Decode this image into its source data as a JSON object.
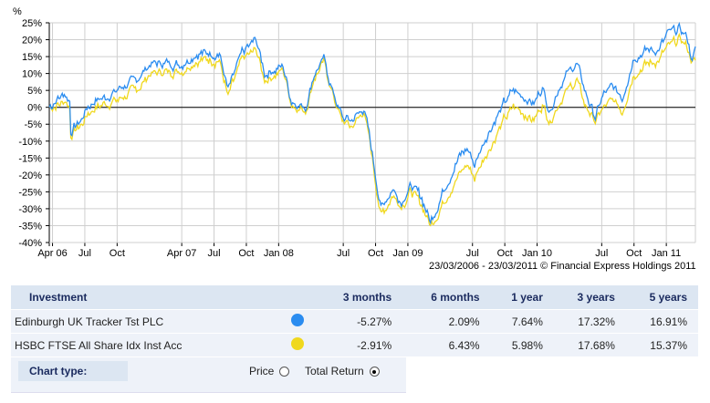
{
  "chart_data": {
    "type": "line",
    "ylabel": "%",
    "ylim": [
      -40,
      25
    ],
    "ystep": 5,
    "ytick_suffix": "%",
    "xlim_months": [
      0,
      60
    ],
    "grid": true,
    "xticks": [
      {
        "label": "Apr 06",
        "m": 0.3
      },
      {
        "label": "Jul",
        "m": 3.3
      },
      {
        "label": "Oct",
        "m": 6.3
      },
      {
        "label": "Apr 07",
        "m": 12.3
      },
      {
        "label": "Jul",
        "m": 15.3
      },
      {
        "label": "Oct",
        "m": 18.3
      },
      {
        "label": "Jan 08",
        "m": 21.3
      },
      {
        "label": "Jul",
        "m": 27.3
      },
      {
        "label": "Oct",
        "m": 30.3
      },
      {
        "label": "Jan 09",
        "m": 33.3
      },
      {
        "label": "Jul",
        "m": 39.3
      },
      {
        "label": "Oct",
        "m": 42.3
      },
      {
        "label": "Jan 10",
        "m": 45.3
      },
      {
        "label": "Jul",
        "m": 51.3
      },
      {
        "label": "Oct",
        "m": 54.3
      },
      {
        "label": "Jan 11",
        "m": 57.3
      }
    ],
    "x_months": [
      0,
      0.9,
      1.5,
      1.9,
      2.0,
      2.6,
      3.1,
      3.5,
      4.3,
      5.2,
      6.3,
      7.3,
      8.1,
      9.4,
      12.4,
      13.6,
      15.8,
      16.6,
      17.9,
      19.2,
      20.0,
      21.7,
      22.5,
      23.8,
      24.6,
      25.5,
      26.3,
      27.2,
      28.1,
      29.2,
      29.7,
      30.3,
      30.8,
      31.9,
      32.7,
      33.6,
      34.6,
      35.4,
      36.3,
      37.1,
      38.0,
      38.8,
      39.5,
      40.5,
      41.4,
      42.2,
      43.1,
      44.2,
      45.0,
      45.8,
      46.5,
      47.3,
      48.1,
      49.0,
      49.7,
      50.7,
      51.5,
      52.4,
      53.2,
      54.3,
      55.6,
      56.6,
      57.5,
      58.6,
      59.2,
      59.7,
      60.0
    ],
    "series": [
      {
        "name": "Edinburgh UK Tracker Tst PLC",
        "color": "#2a8cf0",
        "values": [
          0,
          3,
          4,
          2,
          -7,
          -5,
          -3,
          0,
          2,
          3,
          5,
          7,
          8,
          13,
          13,
          16,
          16,
          5,
          16,
          20,
          10,
          12,
          2,
          0,
          10,
          14,
          5,
          -3,
          -4,
          0,
          -8,
          -20,
          -30,
          -24,
          -28,
          -23,
          -27,
          -34,
          -27,
          -21,
          -15,
          -12,
          -17,
          -9,
          -4,
          1,
          5,
          3,
          1,
          6,
          -1,
          6,
          10,
          13,
          5,
          -3,
          4,
          6,
          3,
          15,
          17,
          17,
          22,
          23,
          21,
          14,
          17
        ]
      },
      {
        "name": "HSBC FTSE All Share Idx Inst Acc",
        "color": "#f0d81e",
        "values": [
          0,
          1,
          2,
          0,
          -8,
          -6,
          -5,
          -2,
          0,
          1,
          2,
          4,
          5,
          10,
          11,
          14,
          14,
          3,
          14,
          17,
          8,
          11,
          1,
          -1,
          9,
          13,
          4,
          -4,
          -6,
          -1,
          -9,
          -22,
          -32,
          -26,
          -29,
          -25,
          -29,
          -35,
          -30,
          -25,
          -20,
          -17,
          -21,
          -14,
          -9,
          -4,
          0,
          -2,
          -4,
          1,
          -4,
          1,
          5,
          8,
          1,
          -4,
          0,
          2,
          -1,
          10,
          13,
          14,
          18,
          20,
          18,
          14,
          13
        ]
      }
    ],
    "copyright": "23/03/2006 - 23/03/2011 © Financial Express Holdings 2011"
  },
  "table": {
    "headers": [
      "Investment",
      "3 months",
      "6 months",
      "1 year",
      "3 years",
      "5 years"
    ],
    "rows": [
      {
        "name": "Edinburgh UK Tracker Tst PLC",
        "color": "#2a8cf0",
        "values": [
          "-5.27%",
          "2.09%",
          "7.64%",
          "17.32%",
          "16.91%"
        ]
      },
      {
        "name": "HSBC FTSE All Share Idx Inst Acc",
        "color": "#f0d81e",
        "values": [
          "-2.91%",
          "6.43%",
          "5.98%",
          "17.68%",
          "15.37%"
        ]
      }
    ]
  },
  "chart_type": {
    "label": "Chart type:",
    "options": [
      "Price",
      "Total Return"
    ],
    "selected": "Total Return"
  }
}
